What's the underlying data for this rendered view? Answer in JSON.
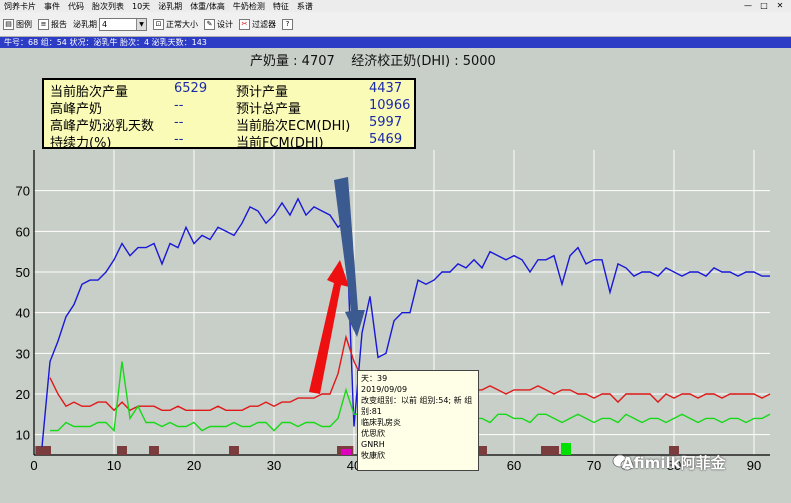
{
  "menu": {
    "items": [
      "饲养卡片",
      "事件",
      "代码",
      "胎次列表",
      "10天",
      "泌乳期",
      "体重/体高",
      "牛奶检测",
      "特征",
      "系谱"
    ],
    "window_controls": [
      "—",
      "□",
      "✕"
    ]
  },
  "toolbar": {
    "graph_label": "图例",
    "report_label": "报告",
    "lactation_label": "泌乳期",
    "lactation_value": "4",
    "normal_size_label": "正常大小",
    "design_label": "设计",
    "filter_label": "过滤器",
    "help_label": "?"
  },
  "infobar": {
    "text": "牛号：68   组：54   状况：泌乳牛   胎次：4   泌乳天数：143"
  },
  "header": {
    "production_label": "产奶量",
    "production_value": "4707",
    "dhi_label": "经济校正奶(DHI)",
    "dhi_value": "5000"
  },
  "stats": [
    {
      "label": "当前胎次产量",
      "value": "6529"
    },
    {
      "label": "高峰产奶",
      "value": "--"
    },
    {
      "label": "高峰产奶泌乳天数",
      "value": "--"
    },
    {
      "label": "持续力(%)",
      "value": "--"
    },
    {
      "label": "预计产量",
      "value": "4437"
    },
    {
      "label": "预计总产量",
      "value": "10966"
    },
    {
      "label": "当前胎次ECM(DHI)",
      "value": "5997"
    },
    {
      "label": "当前FCM(DHI)",
      "value": "5469"
    }
  ],
  "tooltip": {
    "lines": [
      "天：39",
      "2019/09/09",
      "改变组别：以前 组别:54; 新 组",
      "别:81",
      "临床乳房炎",
      "优思欣",
      "GNRH",
      "牧康欣"
    ]
  },
  "watermark": "Afimilk阿菲金",
  "colors": {
    "milk_line": "#1818d8",
    "red_line": "#e01818",
    "green_line": "#18d818",
    "event_bar": "#7a3c3c",
    "pink_bar": "#e000c0",
    "green_bar": "#00e000",
    "red_arrow": "#ee1010",
    "blue_arrow": "#3a5a90",
    "infobar": "#2c3cc4",
    "infobox_bg": "#fbfbb8"
  },
  "chart_data": {
    "type": "line",
    "xlim": [
      0,
      92
    ],
    "ylim": [
      5,
      80
    ],
    "x_ticks": [
      0,
      10,
      20,
      30,
      40,
      50,
      60,
      70,
      80,
      90
    ],
    "y_ticks": [
      10,
      20,
      30,
      40,
      50,
      60,
      70
    ],
    "x_tick_labels": [
      "0",
      "10",
      "20",
      "30",
      "40",
      "50",
      "60",
      "70",
      "80",
      "90"
    ],
    "y_tick_labels": [
      "10",
      "20",
      "30",
      "40",
      "50",
      "60",
      "70"
    ],
    "grid": true,
    "series": [
      {
        "key": "blue",
        "x": [
          1,
          2,
          3,
          4,
          5,
          6,
          7,
          8,
          9,
          10,
          11,
          12,
          13,
          14,
          15,
          16,
          17,
          18,
          19,
          20,
          21,
          22,
          23,
          24,
          25,
          26,
          27,
          28,
          29,
          30,
          31,
          32,
          33,
          34,
          35,
          36,
          37,
          38,
          39,
          40,
          41,
          42,
          43,
          44,
          45,
          46,
          47,
          48,
          49,
          50,
          51,
          52,
          53,
          54,
          55,
          56,
          57,
          58,
          59,
          60,
          61,
          62,
          63,
          64,
          65,
          66,
          67,
          68,
          69,
          70,
          71,
          72,
          73,
          74,
          75,
          76,
          77,
          78,
          79,
          80,
          81,
          82,
          83,
          84,
          85,
          86,
          87,
          88,
          89,
          90,
          91,
          92
        ],
        "y": [
          7,
          28,
          33,
          39,
          42,
          47,
          48,
          48,
          50,
          53,
          57,
          54,
          56,
          56,
          57,
          52,
          57,
          56,
          61,
          57,
          59,
          58,
          61,
          60,
          59,
          62,
          66,
          65,
          62,
          64,
          67,
          64,
          68,
          64,
          66,
          65,
          64,
          61,
          63,
          12,
          35,
          44,
          29,
          30,
          38,
          40,
          40,
          48,
          47,
          48,
          50,
          50,
          52,
          51,
          53,
          51,
          55,
          54,
          53,
          54,
          53,
          50,
          53,
          53,
          54,
          47,
          54,
          56,
          52,
          53,
          53,
          45,
          52,
          51,
          49,
          50,
          50,
          49,
          51,
          50,
          49,
          50,
          50,
          49,
          51,
          50,
          50,
          49,
          50,
          50,
          49,
          49
        ]
      },
      {
        "key": "red",
        "x": [
          2,
          3,
          4,
          5,
          6,
          7,
          8,
          9,
          10,
          11,
          12,
          13,
          14,
          15,
          16,
          17,
          18,
          19,
          20,
          21,
          22,
          23,
          24,
          25,
          26,
          27,
          28,
          29,
          30,
          31,
          32,
          33,
          34,
          35,
          36,
          37,
          38,
          39,
          40,
          41,
          42,
          43,
          44,
          45,
          46,
          47,
          48,
          49,
          50,
          51,
          52,
          53,
          54,
          55,
          56,
          57,
          58,
          59,
          60,
          61,
          62,
          63,
          64,
          65,
          66,
          67,
          68,
          69,
          70,
          71,
          72,
          73,
          74,
          75,
          76,
          77,
          78,
          79,
          80,
          81,
          82,
          83,
          84,
          85,
          86,
          87,
          88,
          89,
          90,
          91,
          92
        ],
        "y": [
          24,
          20,
          17,
          18,
          17,
          17,
          18,
          18,
          16,
          18,
          16,
          17,
          17,
          17,
          16,
          16,
          17,
          16,
          16,
          16,
          16,
          17,
          16,
          16,
          16,
          17,
          17,
          18,
          17,
          18,
          18,
          19,
          19,
          19,
          20,
          20,
          25,
          34,
          28,
          24,
          23,
          21,
          20,
          19,
          20,
          22,
          21,
          21,
          20,
          20,
          21,
          21,
          22,
          21,
          21,
          22,
          21,
          20,
          21,
          21,
          21,
          22,
          21,
          20,
          21,
          21,
          20,
          20,
          19,
          20,
          20,
          18,
          20,
          20,
          20,
          20,
          18,
          20,
          19,
          20,
          20,
          19,
          20,
          20,
          19,
          20,
          20,
          20,
          20,
          19,
          20
        ]
      },
      {
        "key": "green",
        "x": [
          2,
          3,
          4,
          5,
          6,
          7,
          8,
          9,
          10,
          11,
          12,
          13,
          14,
          15,
          16,
          17,
          18,
          19,
          20,
          21,
          22,
          23,
          24,
          25,
          26,
          27,
          28,
          29,
          30,
          31,
          32,
          33,
          34,
          35,
          36,
          37,
          38,
          39,
          40,
          41,
          42,
          43,
          44,
          45,
          46,
          47,
          48,
          49,
          50,
          51,
          52,
          53,
          54,
          55,
          56,
          57,
          58,
          59,
          60,
          61,
          62,
          63,
          64,
          65,
          66,
          67,
          68,
          69,
          70,
          71,
          72,
          73,
          74,
          75,
          76,
          77,
          78,
          79,
          80,
          81,
          82,
          83,
          84,
          85,
          86,
          87,
          88,
          89,
          90,
          91,
          92
        ],
        "y": [
          11,
          11,
          13,
          12,
          12,
          12,
          13,
          13,
          11,
          28,
          14,
          17,
          13,
          13,
          12,
          13,
          12,
          12,
          13,
          11,
          12,
          12,
          12,
          13,
          12,
          12,
          13,
          13,
          11,
          13,
          13,
          12,
          13,
          13,
          12,
          12,
          14,
          21,
          15,
          15,
          12,
          12,
          13,
          13,
          13,
          14,
          14,
          14,
          15,
          14,
          15,
          14,
          14,
          14,
          14,
          13,
          15,
          15,
          14,
          14,
          13,
          15,
          15,
          14,
          13,
          14,
          15,
          14,
          13,
          14,
          14,
          13,
          15,
          14,
          13,
          14,
          14,
          13,
          14,
          15,
          14,
          13,
          14,
          14,
          13,
          14,
          14,
          13,
          14,
          14,
          15
        ]
      }
    ],
    "event_bars": [
      {
        "x": 0.8,
        "color": "brown"
      },
      {
        "x": 1.5,
        "color": "brown"
      },
      {
        "x": 11,
        "color": "brown"
      },
      {
        "x": 15,
        "color": "brown"
      },
      {
        "x": 25,
        "color": "brown"
      },
      {
        "x": 38.5,
        "color": "brown"
      },
      {
        "x": 39.3,
        "color": "brown"
      },
      {
        "x": 39,
        "color": "pink"
      },
      {
        "x": 47.5,
        "color": "brown"
      },
      {
        "x": 56,
        "color": "brown"
      },
      {
        "x": 64,
        "color": "brown"
      },
      {
        "x": 65,
        "color": "brown"
      },
      {
        "x": 66.5,
        "color": "green"
      },
      {
        "x": 80,
        "color": "brown"
      }
    ]
  }
}
